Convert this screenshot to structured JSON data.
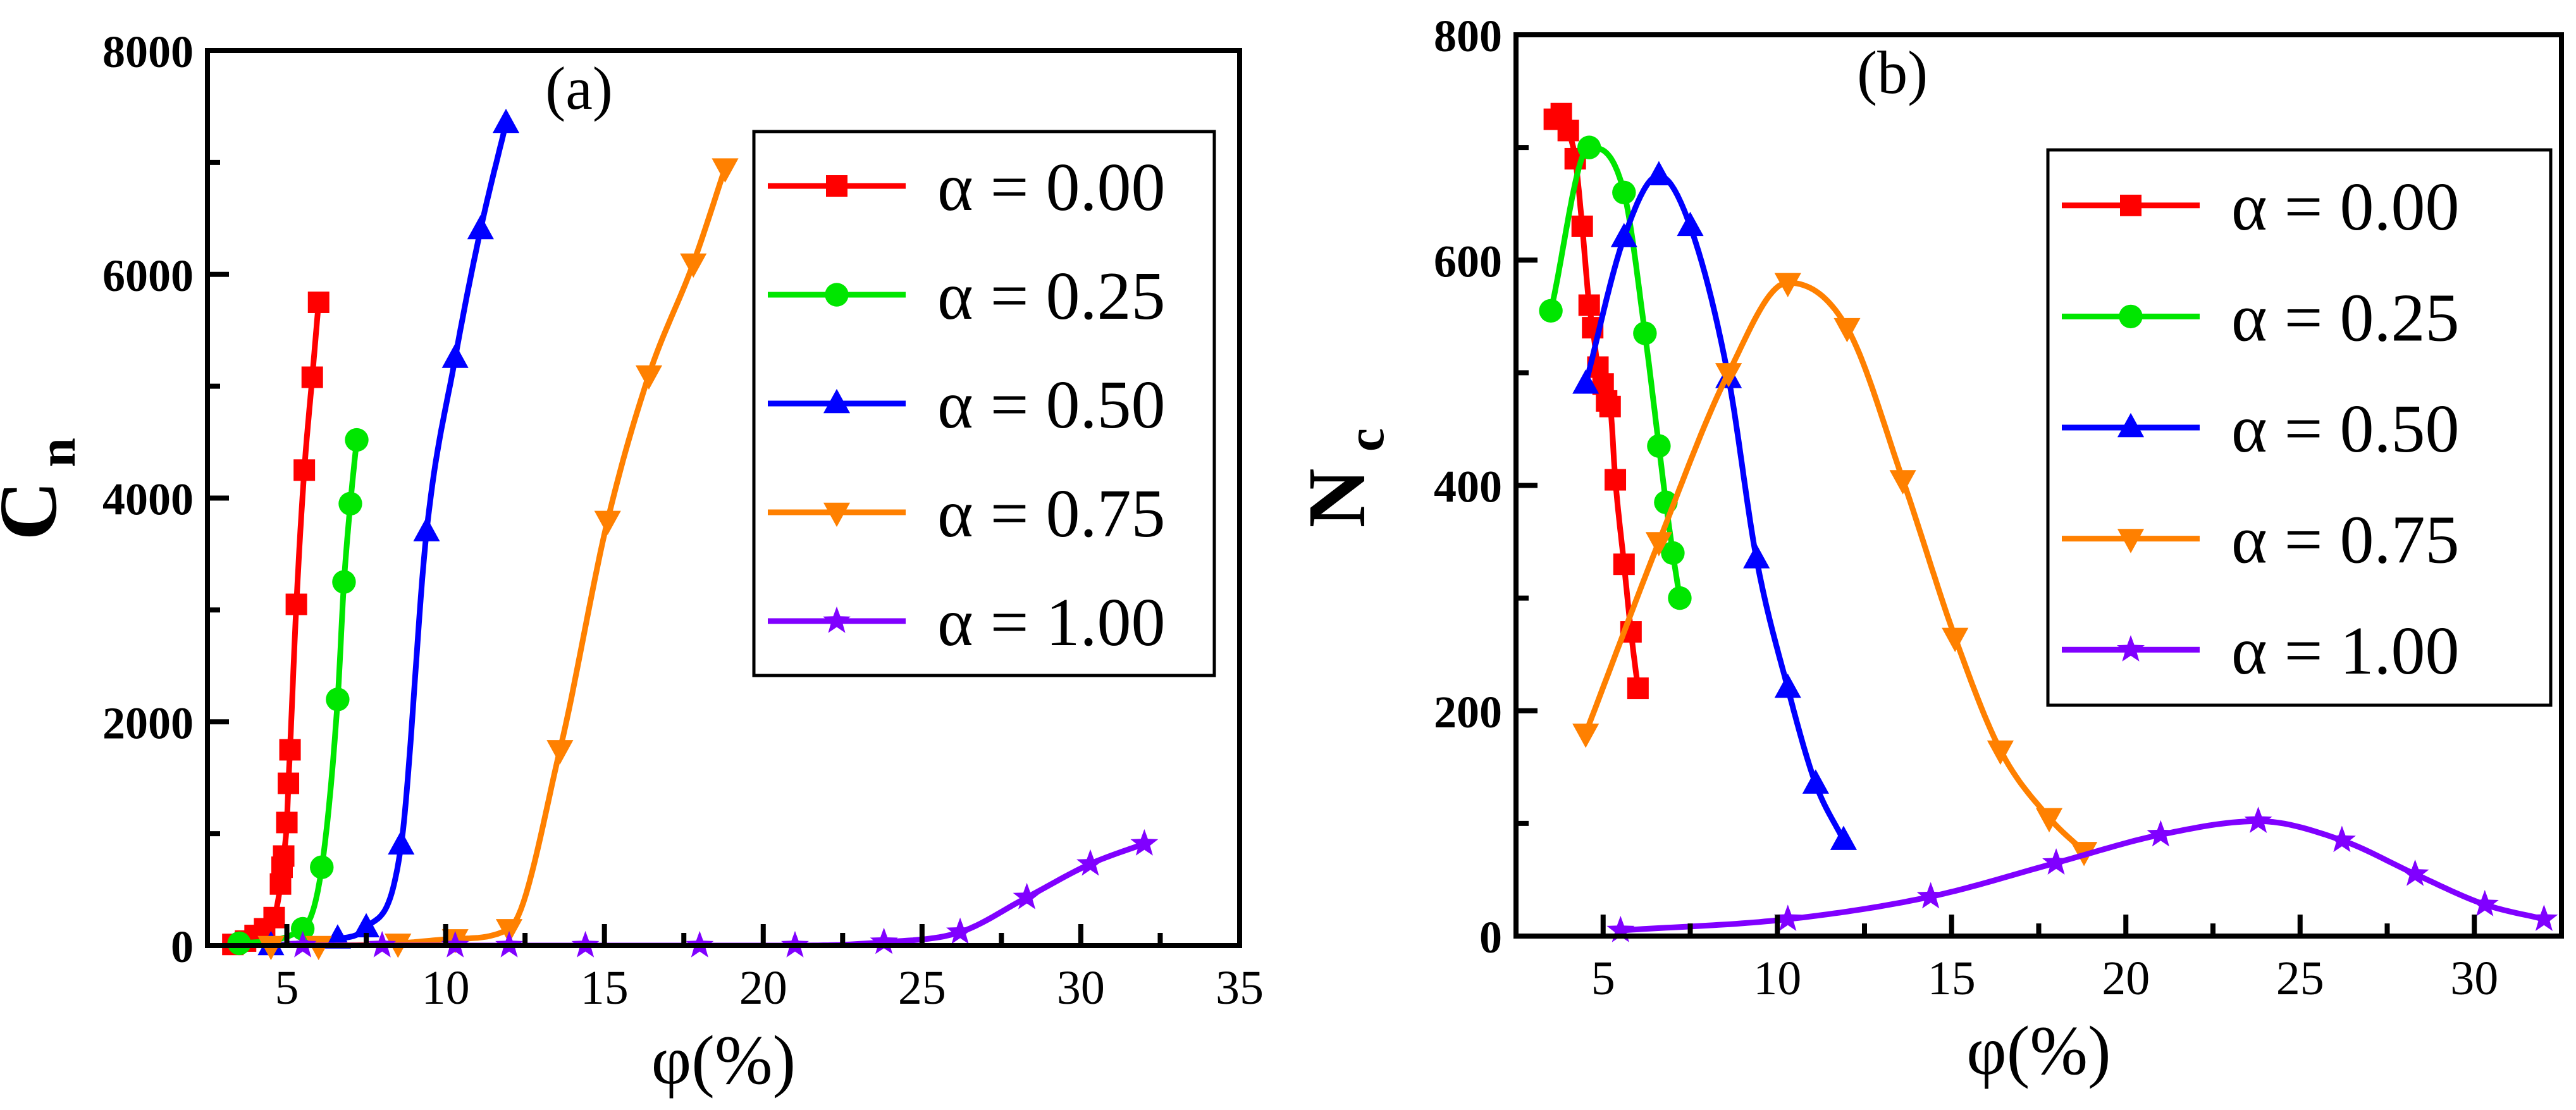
{
  "colors": {
    "alpha_000": "#ff0000",
    "alpha_025": "#00e600",
    "alpha_050": "#0000ff",
    "alpha_075": "#ff8000",
    "alpha_100": "#8000ff",
    "axis": "#000000"
  },
  "chart_data": [
    {
      "type": "line",
      "panel_label": "(a)",
      "title": "",
      "xlabel": "φ(%)",
      "ylabel": "C",
      "ylabel_subscript": "n",
      "xlim": [
        2.5,
        35
      ],
      "ylim": [
        0,
        8000
      ],
      "xticks": [
        5,
        10,
        15,
        20,
        25,
        30,
        35
      ],
      "xtick_labels": [
        "5",
        "10",
        "15",
        "20",
        "25",
        "30",
        "35"
      ],
      "yticks": [
        0,
        2000,
        4000,
        6000,
        8000
      ],
      "ytick_labels": [
        "0",
        "2000",
        "4000",
        "6000",
        "8000"
      ],
      "grid": false,
      "legend_position": "top-right",
      "series": [
        {
          "name": "α = 0.00",
          "marker": "square",
          "color_key": "alpha_000",
          "x": [
            3.3,
            3.7,
            4.0,
            4.3,
            4.6,
            4.8,
            4.85,
            4.9,
            5.0,
            5.05,
            5.1,
            5.3,
            5.55,
            5.8,
            6.0
          ],
          "y": [
            10,
            40,
            90,
            150,
            250,
            550,
            700,
            800,
            1100,
            1450,
            1750,
            3050,
            4250,
            5080,
            5750
          ]
        },
        {
          "name": "α = 0.25",
          "marker": "circle",
          "color_key": "alpha_025",
          "x": [
            3.5,
            5.5,
            6.1,
            6.6,
            6.8,
            7.0,
            7.2
          ],
          "y": [
            20,
            150,
            700,
            2200,
            3250,
            3950,
            4520
          ]
        },
        {
          "name": "α = 0.50",
          "marker": "triangle-up",
          "color_key": "alpha_050",
          "x": [
            4.5,
            6.6,
            7.5,
            8.6,
            9.4,
            10.3,
            11.1,
            11.9
          ],
          "y": [
            0,
            60,
            160,
            900,
            3700,
            5250,
            6400,
            7350
          ]
        },
        {
          "name": "α = 0.75",
          "marker": "triangle-down",
          "color_key": "alpha_075",
          "x": [
            4.5,
            6.0,
            8.5,
            10.3,
            12.0,
            13.6,
            15.1,
            16.4,
            17.8,
            18.8
          ],
          "y": [
            0,
            0,
            20,
            60,
            150,
            1750,
            3800,
            5100,
            6100,
            6950
          ]
        },
        {
          "name": "α = 1.00",
          "marker": "star",
          "color_key": "alpha_100",
          "x": [
            5.5,
            8.0,
            10.3,
            12.0,
            14.4,
            18.0,
            21.0,
            23.8,
            26.2,
            28.3,
            30.3,
            32.0
          ],
          "y": [
            0,
            0,
            0,
            0,
            0,
            0,
            0,
            30,
            120,
            430,
            730,
            910
          ]
        }
      ]
    },
    {
      "type": "line",
      "panel_label": "(b)",
      "title": "",
      "xlabel": "φ(%)",
      "ylabel": "N",
      "ylabel_subscript": "c",
      "xlim": [
        2.5,
        32.5
      ],
      "ylim": [
        0,
        800
      ],
      "xticks": [
        5,
        10,
        15,
        20,
        25,
        30
      ],
      "xtick_labels": [
        "5",
        "10",
        "15",
        "20",
        "25",
        "30"
      ],
      "yticks": [
        0,
        200,
        400,
        600,
        800
      ],
      "ytick_labels": [
        "0",
        "200",
        "400",
        "600",
        "800"
      ],
      "grid": false,
      "legend_position": "top-right",
      "series": [
        {
          "name": "α = 0.00",
          "marker": "square",
          "color_key": "alpha_000",
          "x": [
            3.6,
            3.8,
            4.0,
            4.2,
            4.4,
            4.6,
            4.7,
            4.85,
            5.0,
            5.1,
            5.2,
            5.35,
            5.6,
            5.8,
            6.0
          ],
          "y": [
            725,
            730,
            715,
            690,
            630,
            560,
            540,
            505,
            490,
            475,
            470,
            405,
            330,
            270,
            220
          ]
        },
        {
          "name": "α = 0.25",
          "marker": "circle",
          "color_key": "alpha_025",
          "x": [
            3.5,
            4.6,
            5.6,
            6.2,
            6.6,
            6.8,
            7.0,
            7.2
          ],
          "y": [
            555,
            700,
            660,
            535,
            435,
            385,
            340,
            300
          ]
        },
        {
          "name": "α = 0.50",
          "marker": "triangle-up",
          "color_key": "alpha_050",
          "x": [
            4.5,
            5.6,
            6.6,
            7.5,
            8.6,
            9.4,
            10.3,
            11.1,
            11.9
          ],
          "y": [
            490,
            620,
            675,
            630,
            495,
            335,
            220,
            135,
            85
          ]
        },
        {
          "name": "α = 0.75",
          "marker": "triangle-down",
          "color_key": "alpha_075",
          "x": [
            4.5,
            6.6,
            8.6,
            10.3,
            12.0,
            13.6,
            15.1,
            16.4,
            17.8,
            18.8
          ],
          "y": [
            180,
            350,
            500,
            580,
            540,
            405,
            265,
            165,
            105,
            75
          ]
        },
        {
          "name": "α = 1.00",
          "marker": "star",
          "color_key": "alpha_100",
          "x": [
            5.5,
            10.3,
            14.4,
            18.0,
            21.0,
            23.8,
            26.2,
            28.3,
            30.3,
            32.0
          ],
          "y": [
            5,
            15,
            35,
            65,
            90,
            102,
            85,
            55,
            28,
            15
          ]
        }
      ]
    }
  ]
}
